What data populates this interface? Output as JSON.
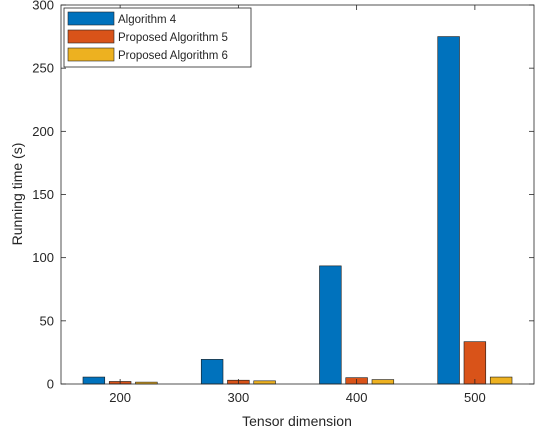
{
  "chart_data": {
    "type": "bar",
    "title": "",
    "xlabel": "Tensor dimension",
    "ylabel": "Running time (s)",
    "categories": [
      "200",
      "300",
      "400",
      "500"
    ],
    "series": [
      {
        "name": "Algorithm 4",
        "values": [
          5.5,
          19.5,
          93.5,
          275
        ],
        "color": "#0072BD"
      },
      {
        "name": "Proposed Algorithm 5",
        "values": [
          2,
          3,
          5,
          33.5
        ],
        "color": "#D95319"
      },
      {
        "name": "Proposed Algorithm 6",
        "values": [
          1.5,
          2.5,
          3.5,
          5.5
        ],
        "color": "#EDB120"
      }
    ],
    "ylim": [
      0,
      300
    ],
    "yticks": [
      0,
      50,
      100,
      150,
      200,
      250,
      300
    ],
    "grid": false,
    "legend_position": "top-left"
  }
}
